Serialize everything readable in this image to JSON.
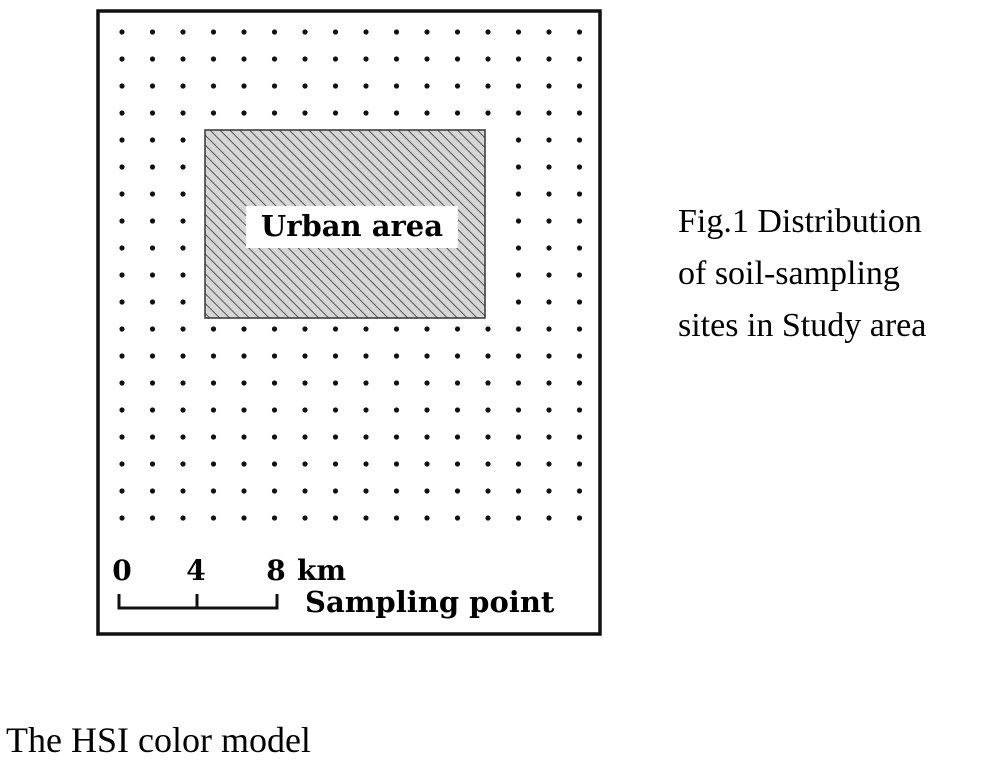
{
  "figure": {
    "urban_area_label": "Urban area",
    "scale_bar": {
      "ticks": [
        "0",
        "4",
        "8"
      ],
      "unit": "km"
    },
    "legend_label": "Sampling point",
    "colors": {
      "frame": "#111111",
      "points": "#111111",
      "hatch": "#555555",
      "urban_fill": "#d6d6d6"
    }
  },
  "caption": {
    "lines": [
      "Fig.1 Distribution",
      "of soil-sampling",
      "sites in Study area"
    ]
  },
  "section_heading": "The HSI color model"
}
